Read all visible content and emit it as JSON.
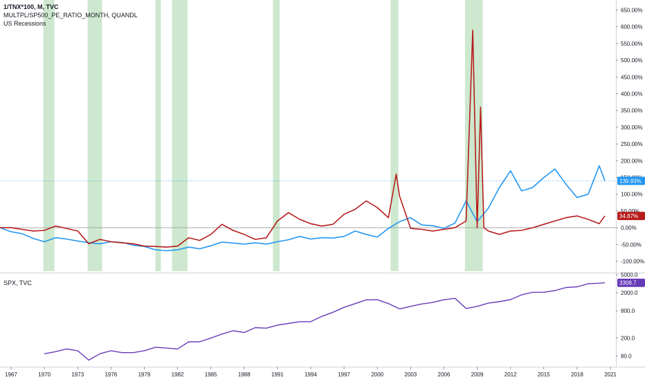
{
  "legend": {
    "line1": "1/TNX*100, M, TVC",
    "line2": "MULTPL/SP500_PE_RATIO_MONTH, QUANDL",
    "line3": "US Recessions",
    "lower": "SPX, TVC"
  },
  "colors": {
    "blue_series": "#2196f3",
    "red_series": "#b71c1c",
    "purple_series": "#673ab7",
    "recession_fill": "#c8e6c9",
    "zero_line": "#9e9e9e",
    "hline": "#2196f3"
  },
  "chart_data": [
    {
      "type": "line",
      "title": "",
      "x_unit": "year",
      "xlim": [
        1966,
        2021.5
      ],
      "ylim": [
        -130,
        680
      ],
      "y_format": "percent",
      "y_ticks": [
        "650.00%",
        "600.00%",
        "550.00%",
        "500.00%",
        "450.00%",
        "400.00%",
        "350.00%",
        "300.00%",
        "250.00%",
        "200.00%",
        "150.00%",
        "100.00%",
        "50.00%",
        "0.00%",
        "-50.00%",
        "-100.00%"
      ],
      "y_tick_values": [
        650,
        600,
        550,
        500,
        450,
        400,
        350,
        300,
        250,
        200,
        150,
        100,
        50,
        0,
        -50,
        -100
      ],
      "x_ticks": [
        "1967",
        "1970",
        "1973",
        "1976",
        "1979",
        "1982",
        "1985",
        "1988",
        "1991",
        "1994",
        "1997",
        "2000",
        "2003",
        "2006",
        "2009",
        "2012",
        "2015",
        "2018",
        "2021"
      ],
      "x_tick_values": [
        1967,
        1970,
        1973,
        1976,
        1979,
        1982,
        1985,
        1988,
        1991,
        1994,
        1997,
        2000,
        2003,
        2006,
        2009,
        2012,
        2015,
        2018,
        2021
      ],
      "recessions": [
        [
          1969.9,
          1970.9
        ],
        [
          1973.9,
          1975.2
        ],
        [
          1980.0,
          1980.5
        ],
        [
          1981.5,
          1982.9
        ],
        [
          1990.6,
          1991.2
        ],
        [
          2001.2,
          2001.9
        ],
        [
          2007.9,
          2009.5
        ]
      ],
      "hline_value": 139.93,
      "series": [
        {
          "name": "1/TNX*100",
          "last_label": "139.93%",
          "x": [
            1966,
            1967,
            1968,
            1969,
            1970,
            1971,
            1972,
            1973,
            1974,
            1975,
            1976,
            1977,
            1978,
            1979,
            1980,
            1981,
            1982,
            1983,
            1984,
            1985,
            1986,
            1987,
            1988,
            1989,
            1990,
            1991,
            1992,
            1993,
            1994,
            1995,
            1996,
            1997,
            1998,
            1999,
            2000,
            2001,
            2002,
            2003,
            2004,
            2005,
            2006,
            2007,
            2008,
            2009,
            2010,
            2011,
            2012,
            2013,
            2014,
            2015,
            2016,
            2017,
            2018,
            2019,
            2020,
            2020.5
          ],
          "values": [
            0,
            -12,
            -18,
            -32,
            -42,
            -30,
            -34,
            -40,
            -45,
            -48,
            -42,
            -44,
            -52,
            -56,
            -66,
            -69,
            -66,
            -58,
            -63,
            -54,
            -43,
            -46,
            -49,
            -45,
            -49,
            -42,
            -36,
            -26,
            -34,
            -30,
            -31,
            -26,
            -10,
            -20,
            -28,
            -2,
            18,
            30,
            8,
            6,
            -2,
            14,
            80,
            18,
            58,
            120,
            170,
            110,
            120,
            150,
            175,
            130,
            90,
            100,
            185,
            140
          ]
        },
        {
          "name": "MULTPL/SP500_PE_RATIO_MONTH",
          "last_label": "34.87%",
          "x": [
            1966,
            1967,
            1968,
            1969,
            1970,
            1971,
            1972,
            1973,
            1974,
            1975,
            1976,
            1977,
            1978,
            1979,
            1980,
            1981,
            1982,
            1983,
            1984,
            1985,
            1986,
            1987,
            1988,
            1989,
            1990,
            1991,
            1992,
            1993,
            1994,
            1995,
            1996,
            1997,
            1998,
            1999,
            2000,
            2001,
            2001.7,
            2002,
            2003,
            2004,
            2005,
            2006,
            2007,
            2008,
            2008.6,
            2009.0,
            2009.3,
            2009.6,
            2010,
            2011,
            2012,
            2013,
            2014,
            2015,
            2016,
            2017,
            2018,
            2019,
            2020,
            2020.5
          ],
          "values": [
            0,
            0,
            -5,
            -10,
            -8,
            5,
            -2,
            -10,
            -48,
            -35,
            -42,
            -45,
            -48,
            -55,
            -56,
            -58,
            -55,
            -30,
            -38,
            -20,
            10,
            -8,
            -20,
            -35,
            -30,
            20,
            45,
            25,
            12,
            5,
            10,
            40,
            55,
            80,
            60,
            30,
            160,
            95,
            -2,
            -5,
            -10,
            -5,
            0,
            20,
            590,
            0,
            360,
            0,
            -10,
            -20,
            -10,
            -8,
            0,
            10,
            20,
            30,
            35,
            25,
            12,
            35
          ]
        }
      ]
    },
    {
      "type": "line",
      "title": "",
      "x_unit": "year",
      "xlim": [
        1966,
        2021.5
      ],
      "y_scale": "log",
      "ylim": [
        50,
        5000
      ],
      "y_ticks": [
        "5000.0",
        "2000.0",
        "800.0",
        "200.0",
        "80.0"
      ],
      "y_tick_values": [
        5000,
        2000,
        800,
        200,
        80
      ],
      "series": [
        {
          "name": "SPX, TVC",
          "last_label": "3308.7",
          "x": [
            1970,
            1971,
            1972,
            1973,
            1974,
            1975,
            1976,
            1977,
            1978,
            1979,
            1980,
            1981,
            1982,
            1983,
            1984,
            1985,
            1986,
            1987,
            1988,
            1989,
            1990,
            1991,
            1992,
            1993,
            1994,
            1995,
            1996,
            1997,
            1998,
            1999,
            2000,
            2001,
            2002,
            2003,
            2004,
            2005,
            2006,
            2007,
            2008,
            2009,
            2010,
            2011,
            2012,
            2013,
            2014,
            2015,
            2016,
            2017,
            2018,
            2019,
            2020,
            2020.5
          ],
          "values": [
            90,
            100,
            115,
            105,
            65,
            90,
            105,
            95,
            95,
            105,
            125,
            120,
            115,
            165,
            165,
            200,
            245,
            290,
            265,
            340,
            330,
            385,
            420,
            460,
            460,
            600,
            740,
            950,
            1150,
            1390,
            1400,
            1150,
            880,
            1000,
            1130,
            1220,
            1400,
            1500,
            900,
            1000,
            1180,
            1270,
            1410,
            1800,
            2050,
            2050,
            2230,
            2600,
            2700,
            3150,
            3250,
            3308.7
          ]
        }
      ]
    }
  ]
}
